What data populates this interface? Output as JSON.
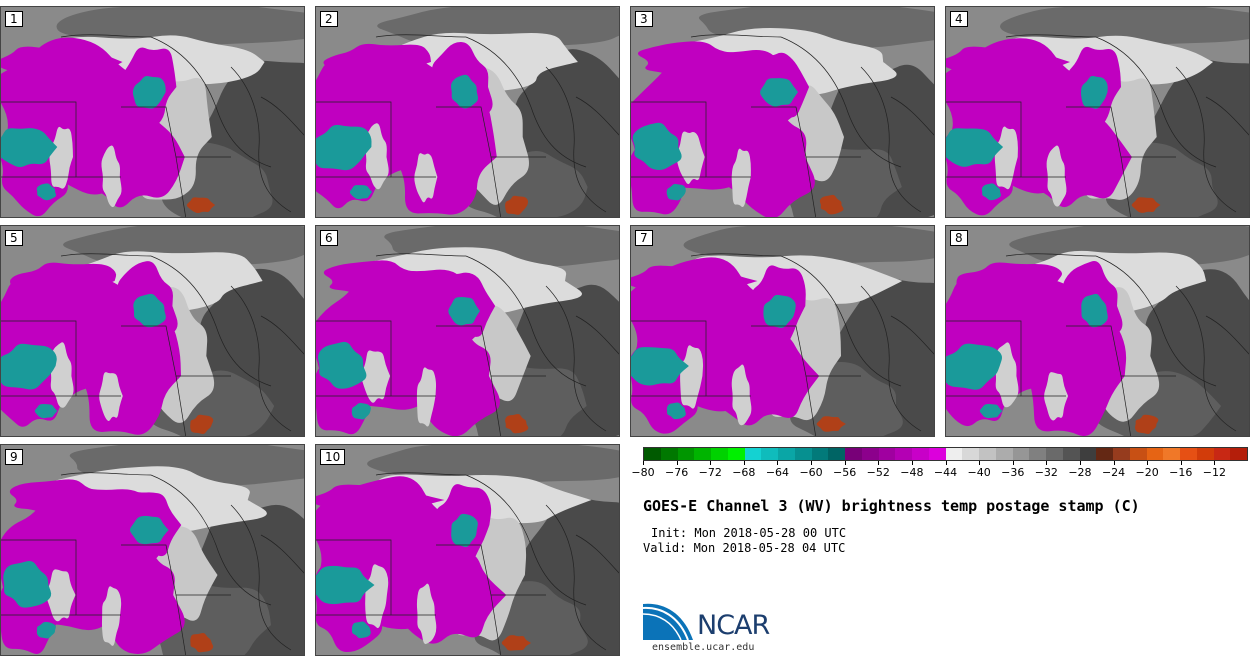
{
  "panels": [
    {
      "label": "1"
    },
    {
      "label": "2"
    },
    {
      "label": "3"
    },
    {
      "label": "4"
    },
    {
      "label": "5"
    },
    {
      "label": "6"
    },
    {
      "label": "7"
    },
    {
      "label": "8"
    },
    {
      "label": "9"
    },
    {
      "label": "10"
    }
  ],
  "colorbar": {
    "ticks": [
      "−80",
      "−76",
      "−72",
      "−68",
      "−64",
      "−60",
      "−56",
      "−52",
      "−48",
      "−44",
      "−40",
      "−36",
      "−32",
      "−28",
      "−24",
      "−20",
      "−16",
      "−12"
    ],
    "colors": [
      "#005a00",
      "#007800",
      "#009600",
      "#00b400",
      "#00d200",
      "#00f000",
      "#14d2d2",
      "#0fbcbc",
      "#0aa6a6",
      "#069090",
      "#027a7a",
      "#006464",
      "#780078",
      "#8c008c",
      "#a000a0",
      "#b400b4",
      "#c800c8",
      "#dc00dc",
      "#eeeeee",
      "#d8d8d8",
      "#c2c2c2",
      "#acacac",
      "#969696",
      "#808080",
      "#6a6a6a",
      "#545454",
      "#3e3e3e",
      "#642814",
      "#963c1e",
      "#c85014",
      "#e66414",
      "#f07828",
      "#e65014",
      "#d23c0a",
      "#c82814",
      "#b41e0a"
    ]
  },
  "title": "GOES-E Channel 3 (WV) brightness temp postage stamp (C)",
  "init": "Init: Mon 2018-05-28 00 UTC",
  "valid": "Valid: Mon 2018-05-28 04 UTC",
  "logo": {
    "name": "NCAR",
    "url": "ensemble.ucar.edu"
  },
  "map_colors": {
    "cold": "#c000c0",
    "very_cold": "#1a9a9a",
    "gray": "#8c8c8c",
    "dark": "#4a4a4a",
    "warm": "#b04018",
    "light": "#dcdcdc"
  }
}
